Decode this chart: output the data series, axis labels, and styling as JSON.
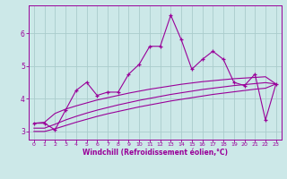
{
  "xlabel": "Windchill (Refroidissement éolien,°C)",
  "x": [
    0,
    1,
    2,
    3,
    4,
    5,
    6,
    7,
    8,
    9,
    10,
    11,
    12,
    13,
    14,
    15,
    16,
    17,
    18,
    19,
    20,
    21,
    22,
    23
  ],
  "line1": [
    3.25,
    3.25,
    3.05,
    3.65,
    4.25,
    4.5,
    4.1,
    4.2,
    4.2,
    4.75,
    5.05,
    5.6,
    5.6,
    6.55,
    5.8,
    4.9,
    5.2,
    5.45,
    5.2,
    4.5,
    4.4,
    4.75,
    3.35,
    4.45
  ],
  "line2": [
    3.25,
    3.28,
    3.55,
    3.68,
    3.78,
    3.87,
    3.96,
    4.03,
    4.1,
    4.17,
    4.23,
    4.29,
    4.34,
    4.39,
    4.44,
    4.48,
    4.52,
    4.55,
    4.58,
    4.61,
    4.63,
    4.65,
    4.67,
    4.45
  ],
  "line3": [
    3.1,
    3.1,
    3.22,
    3.35,
    3.46,
    3.56,
    3.65,
    3.73,
    3.81,
    3.88,
    3.95,
    4.01,
    4.07,
    4.13,
    4.18,
    4.23,
    4.28,
    4.32,
    4.36,
    4.4,
    4.43,
    4.46,
    4.49,
    4.45
  ],
  "line4": [
    3.0,
    3.0,
    3.08,
    3.18,
    3.28,
    3.37,
    3.46,
    3.54,
    3.61,
    3.68,
    3.75,
    3.81,
    3.87,
    3.93,
    3.98,
    4.03,
    4.08,
    4.13,
    4.17,
    4.21,
    4.25,
    4.29,
    4.32,
    4.45
  ],
  "line_color": "#990099",
  "bg_color": "#cce8e8",
  "grid_color": "#aacccc",
  "ylim": [
    2.75,
    6.85
  ],
  "xlim": [
    -0.5,
    23.5
  ],
  "yticks": [
    3,
    4,
    5,
    6
  ],
  "xticks": [
    0,
    1,
    2,
    3,
    4,
    5,
    6,
    7,
    8,
    9,
    10,
    11,
    12,
    13,
    14,
    15,
    16,
    17,
    18,
    19,
    20,
    21,
    22,
    23
  ],
  "marker": "+"
}
